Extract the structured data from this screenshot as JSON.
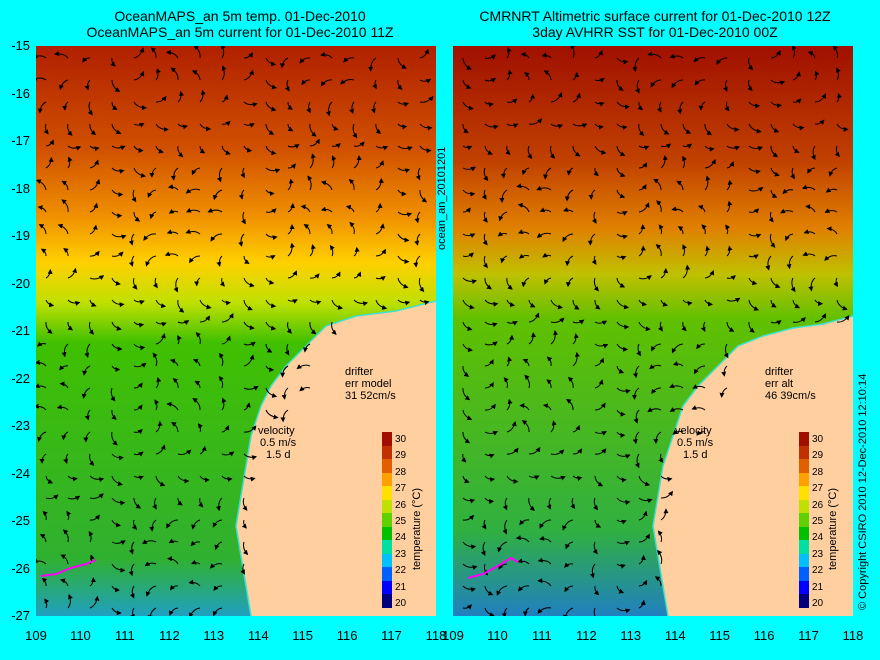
{
  "left_panel": {
    "title_line1": "OceanMAPS_an 5m temp. 01-Dec-2010",
    "title_line2": "OceanMAPS_an 5m current for 01-Dec-2010 11Z",
    "drifter_label": "drifter",
    "err_label": "err model",
    "err_values": "31 52cm/s",
    "velocity_label": "velocity",
    "velocity_scale": "0.5 m/s",
    "velocity_duration": "1.5 d",
    "colorbar_title": "temperature (°C)"
  },
  "right_panel": {
    "title_line1": "CMRNRT Altimetric surface current for 01-Dec-2010 12Z",
    "title_line2": "3day AVHRR SST for 01-Dec-2010 00Z",
    "drifter_label": "drifter",
    "err_label": "err alt",
    "err_values": "46 39cm/s",
    "velocity_label": "velocity",
    "velocity_scale": "0.5 m/s",
    "velocity_duration": "1.5 d",
    "colorbar_title": "temperature (°C)"
  },
  "side_label_left": "ocean_an_20101201",
  "side_label_right": "© Copyright CSIRO 2010   12-Dec-2010 12:10:14",
  "axes": {
    "lat_ticks": [
      "-15",
      "-16",
      "-17",
      "-18",
      "-19",
      "-20",
      "-21",
      "-22",
      "-23",
      "-24",
      "-25",
      "-26",
      "-27"
    ],
    "lon_ticks": [
      "109",
      "110",
      "111",
      "112",
      "113",
      "114",
      "115",
      "116",
      "117",
      "118"
    ],
    "lat_range": [
      -27,
      -15
    ],
    "lon_range": [
      109,
      118
    ]
  },
  "colorbar": {
    "ticks": [
      "30",
      "29",
      "28",
      "27",
      "26",
      "25",
      "24",
      "23",
      "22",
      "21",
      "20"
    ],
    "range": [
      20,
      30
    ],
    "colors": [
      "#00007f",
      "#0000ff",
      "#0060ff",
      "#00c0ff",
      "#00e0a0",
      "#00c000",
      "#60d000",
      "#c0e000",
      "#ffe000",
      "#ffa000",
      "#e06000",
      "#c03000",
      "#a01000"
    ]
  },
  "colors": {
    "background": "#00ffff",
    "land": "#ffcfa0",
    "coastline": "#40e0d0",
    "drifter": "#ff00ff"
  }
}
